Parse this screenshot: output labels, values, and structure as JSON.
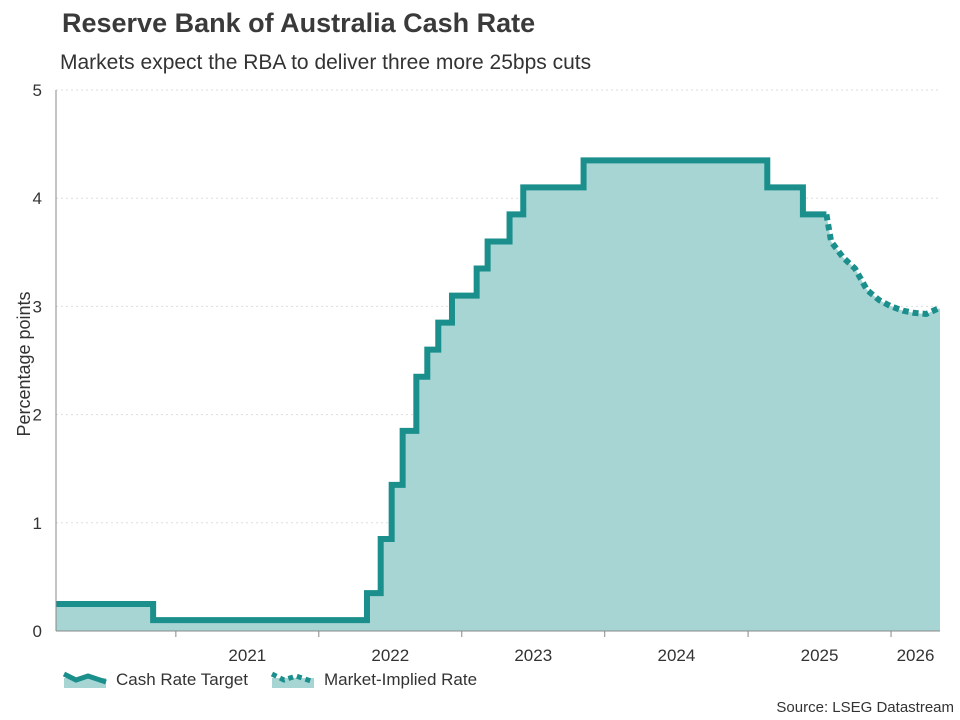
{
  "chart_data": {
    "type": "area",
    "title": "Reserve Bank of Australia Cash Rate",
    "subtitle": "Markets expect the RBA to deliver three more 25bps cuts",
    "ylabel": "Percentage points",
    "xlabel": "",
    "ylim": [
      0,
      5
    ],
    "yticks": [
      0,
      1,
      2,
      3,
      4,
      5
    ],
    "xticks": [
      "2021",
      "2022",
      "2023",
      "2024",
      "2025",
      "2026"
    ],
    "grid": "horizontal dotted",
    "legend_position": "bottom-left",
    "source": "Source: LSEG Datastream",
    "colors": {
      "line": "#1a8f8c",
      "fill": "#a6d5d4",
      "axis": "#888888",
      "grid": "#dddddd"
    },
    "series": [
      {
        "name": "Cash Rate Target",
        "style": "solid step",
        "points": [
          [
            "2020-03-20",
            0.25
          ],
          [
            "2020-11-04",
            0.1
          ],
          [
            "2022-05-04",
            0.35
          ],
          [
            "2022-06-08",
            0.85
          ],
          [
            "2022-07-06",
            1.35
          ],
          [
            "2022-08-03",
            1.85
          ],
          [
            "2022-09-07",
            2.35
          ],
          [
            "2022-10-05",
            2.6
          ],
          [
            "2022-11-02",
            2.85
          ],
          [
            "2022-12-07",
            3.1
          ],
          [
            "2023-02-08",
            3.35
          ],
          [
            "2023-03-08",
            3.6
          ],
          [
            "2023-05-03",
            3.85
          ],
          [
            "2023-06-07",
            4.1
          ],
          [
            "2023-11-08",
            4.35
          ],
          [
            "2025-02-19",
            4.1
          ],
          [
            "2025-05-21",
            3.85
          ],
          [
            "2025-07-20",
            3.85
          ]
        ]
      },
      {
        "name": "Market-Implied Rate",
        "style": "dotted",
        "points": [
          [
            "2025-07-20",
            3.85
          ],
          [
            "2025-08-01",
            3.6
          ],
          [
            "2025-09-01",
            3.45
          ],
          [
            "2025-10-01",
            3.35
          ],
          [
            "2025-11-01",
            3.15
          ],
          [
            "2025-12-01",
            3.06
          ],
          [
            "2026-01-01",
            3.0
          ],
          [
            "2026-02-01",
            2.96
          ],
          [
            "2026-03-01",
            2.94
          ],
          [
            "2026-04-01",
            2.93
          ],
          [
            "2026-05-01",
            2.98
          ]
        ]
      }
    ]
  }
}
